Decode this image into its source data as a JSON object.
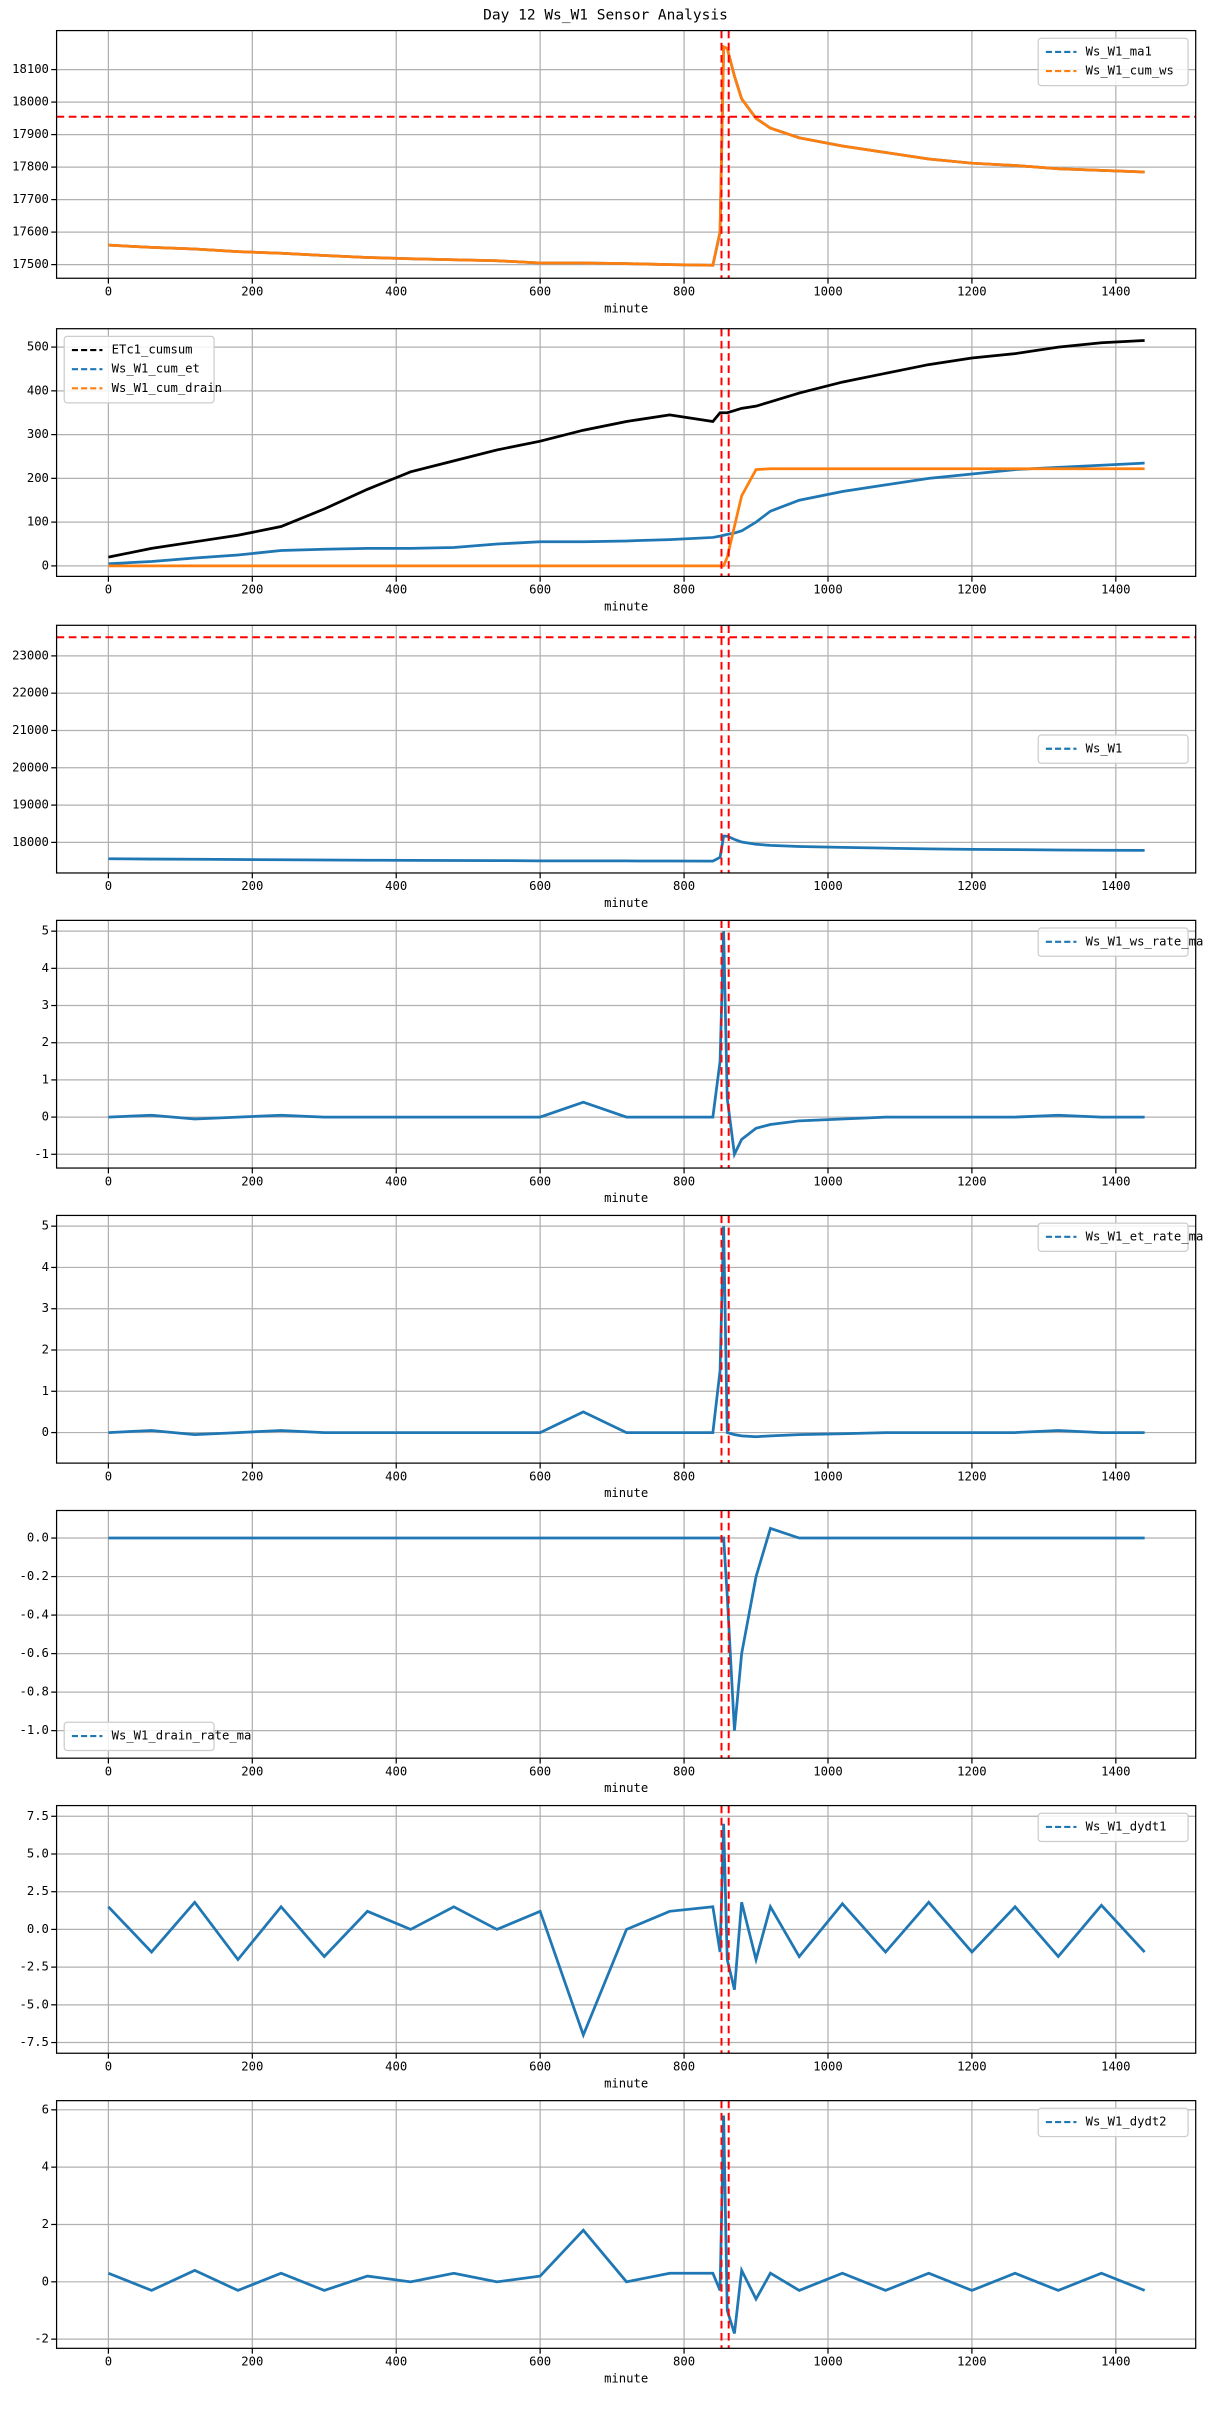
{
  "title": "Day 12 Ws_W1 Sensor Analysis",
  "chart_data": [
    {
      "type": "line",
      "xlabel": "minute",
      "legend": "upper right",
      "grid": true,
      "x": [
        0,
        60,
        120,
        180,
        240,
        300,
        360,
        420,
        480,
        540,
        600,
        660,
        720,
        780,
        840,
        850,
        855,
        860,
        870,
        880,
        900,
        920,
        960,
        1020,
        1080,
        1140,
        1200,
        1260,
        1320,
        1380,
        1440
      ],
      "xlim": [
        -72,
        1511
      ],
      "xticks": [
        0,
        200,
        400,
        600,
        800,
        1000,
        1200,
        1400
      ],
      "ylim": [
        17458,
        18220
      ],
      "yticks": [
        17500,
        17600,
        17700,
        17800,
        17900,
        18000,
        18100
      ],
      "hlines": [
        17955
      ],
      "vlines": [
        852,
        862
      ],
      "series": [
        {
          "name": "Ws_W1_ma1",
          "color": "#1f77b4",
          "values": [
            17560,
            17553,
            17548,
            17540,
            17535,
            17528,
            17522,
            17518,
            17515,
            17512,
            17505,
            17505,
            17503,
            17500,
            17498,
            17600,
            18170,
            18165,
            18080,
            18010,
            17950,
            17920,
            17890,
            17865,
            17845,
            17825,
            17812,
            17805,
            17795,
            17790,
            17785
          ]
        },
        {
          "name": "Ws_W1_cum_ws",
          "color": "#ff7f0e",
          "values": [
            17560,
            17553,
            17548,
            17540,
            17535,
            17528,
            17522,
            17518,
            17515,
            17512,
            17505,
            17505,
            17503,
            17500,
            17498,
            17600,
            18170,
            18165,
            18080,
            18010,
            17950,
            17920,
            17890,
            17865,
            17845,
            17825,
            17812,
            17805,
            17795,
            17790,
            17785
          ]
        }
      ]
    },
    {
      "type": "line",
      "xlabel": "minute",
      "legend": "upper left",
      "grid": true,
      "x": [
        0,
        60,
        120,
        180,
        240,
        300,
        360,
        420,
        480,
        540,
        600,
        660,
        720,
        780,
        840,
        850,
        855,
        860,
        870,
        880,
        900,
        920,
        960,
        1020,
        1080,
        1140,
        1200,
        1260,
        1320,
        1380,
        1440
      ],
      "xlim": [
        -72,
        1511
      ],
      "xticks": [
        0,
        200,
        400,
        600,
        800,
        1000,
        1200,
        1400
      ],
      "ylim": [
        -24,
        542
      ],
      "yticks": [
        0,
        100,
        200,
        300,
        400,
        500
      ],
      "vlines": [
        852,
        862
      ],
      "series": [
        {
          "name": "ETc1_cumsum",
          "color": "#000000",
          "values": [
            20,
            40,
            55,
            70,
            90,
            130,
            175,
            215,
            240,
            265,
            285,
            310,
            330,
            345,
            330,
            350,
            350,
            350,
            355,
            360,
            365,
            375,
            395,
            420,
            440,
            460,
            475,
            485,
            500,
            510,
            515
          ]
        },
        {
          "name": "Ws_W1_cum_et",
          "color": "#1f77b4",
          "values": [
            5,
            10,
            18,
            25,
            35,
            38,
            40,
            40,
            42,
            50,
            55,
            55,
            57,
            60,
            65,
            68,
            70,
            72,
            75,
            80,
            100,
            125,
            150,
            170,
            185,
            200,
            210,
            220,
            225,
            230,
            235
          ]
        },
        {
          "name": "Ws_W1_cum_drain",
          "color": "#ff7f0e",
          "values": [
            0,
            0,
            0,
            0,
            0,
            0,
            0,
            0,
            0,
            0,
            0,
            0,
            0,
            0,
            0,
            0,
            0,
            20,
            90,
            160,
            220,
            222,
            222,
            222,
            222,
            222,
            222,
            222,
            222,
            222,
            222
          ]
        }
      ]
    },
    {
      "type": "line",
      "xlabel": "minute",
      "legend": "center right",
      "grid": true,
      "x": [
        0,
        60,
        120,
        180,
        240,
        300,
        360,
        420,
        480,
        540,
        600,
        660,
        720,
        780,
        840,
        850,
        855,
        860,
        870,
        880,
        900,
        920,
        960,
        1020,
        1080,
        1140,
        1200,
        1260,
        1320,
        1380,
        1440
      ],
      "xlim": [
        -72,
        1511
      ],
      "xticks": [
        0,
        200,
        400,
        600,
        800,
        1000,
        1200,
        1400
      ],
      "ylim": [
        17180,
        23820
      ],
      "yticks": [
        18000,
        19000,
        20000,
        21000,
        22000,
        23000
      ],
      "hlines": [
        23500
      ],
      "vlines": [
        852,
        862
      ],
      "series": [
        {
          "name": "Ws_W1",
          "color": "#1f77b4",
          "values": [
            17560,
            17553,
            17548,
            17540,
            17535,
            17528,
            17522,
            17518,
            17515,
            17512,
            17505,
            17505,
            17503,
            17500,
            17498,
            17600,
            18170,
            18165,
            18080,
            18010,
            17950,
            17920,
            17890,
            17865,
            17845,
            17825,
            17812,
            17805,
            17795,
            17790,
            17785
          ]
        }
      ]
    },
    {
      "type": "line",
      "xlabel": "minute",
      "legend": "upper right",
      "grid": true,
      "x": [
        0,
        60,
        120,
        180,
        240,
        300,
        360,
        420,
        480,
        540,
        600,
        660,
        720,
        780,
        840,
        850,
        855,
        860,
        870,
        880,
        900,
        920,
        960,
        1020,
        1080,
        1140,
        1200,
        1260,
        1320,
        1380,
        1440
      ],
      "xlim": [
        -72,
        1511
      ],
      "xticks": [
        0,
        200,
        400,
        600,
        800,
        1000,
        1200,
        1400
      ],
      "ylim": [
        -1.37,
        5.29
      ],
      "yticks": [
        -1,
        0,
        1,
        2,
        3,
        4,
        5
      ],
      "vlines": [
        852,
        862
      ],
      "series": [
        {
          "name": "Ws_W1_ws_rate_ma",
          "color": "#1f77b4",
          "values": [
            0,
            0.05,
            -0.05,
            0,
            0.05,
            0,
            0,
            0,
            0,
            0,
            0,
            0.4,
            0,
            0,
            0,
            1.5,
            5,
            0.5,
            -1,
            -0.6,
            -0.3,
            -0.2,
            -0.1,
            -0.05,
            0,
            0,
            0,
            0,
            0.05,
            0,
            0
          ]
        }
      ]
    },
    {
      "type": "line",
      "xlabel": "minute",
      "legend": "upper right",
      "grid": true,
      "x": [
        0,
        60,
        120,
        180,
        240,
        300,
        360,
        420,
        480,
        540,
        600,
        660,
        720,
        780,
        840,
        850,
        855,
        860,
        870,
        880,
        900,
        920,
        960,
        1020,
        1080,
        1140,
        1200,
        1260,
        1320,
        1380,
        1440
      ],
      "xlim": [
        -72,
        1511
      ],
      "xticks": [
        0,
        200,
        400,
        600,
        800,
        1000,
        1200,
        1400
      ],
      "ylim": [
        -0.74,
        5.26
      ],
      "yticks": [
        0,
        1,
        2,
        3,
        4,
        5
      ],
      "vlines": [
        852,
        862
      ],
      "series": [
        {
          "name": "Ws_W1_et_rate_ma",
          "color": "#1f77b4",
          "values": [
            0,
            0.05,
            -0.05,
            0,
            0.05,
            0,
            0,
            0,
            0,
            0,
            0,
            0.5,
            0,
            0,
            0,
            1.5,
            5,
            0,
            -0.05,
            -0.08,
            -0.1,
            -0.08,
            -0.05,
            -0.03,
            0,
            0,
            0,
            0,
            0.05,
            0,
            0
          ]
        }
      ]
    },
    {
      "type": "line",
      "xlabel": "minute",
      "legend": "lower left",
      "grid": true,
      "x": [
        0,
        60,
        120,
        180,
        240,
        300,
        360,
        420,
        480,
        540,
        600,
        660,
        720,
        780,
        840,
        850,
        855,
        860,
        870,
        880,
        900,
        920,
        960,
        1020,
        1080,
        1140,
        1200,
        1260,
        1320,
        1380,
        1440
      ],
      "xlim": [
        -72,
        1511
      ],
      "xticks": [
        0,
        200,
        400,
        600,
        800,
        1000,
        1200,
        1400
      ],
      "ylim": [
        -1.143,
        0.143
      ],
      "yticks": [
        {
          "value": 0,
          "label": "0.0"
        },
        -0.2,
        -0.4,
        -0.6,
        -0.8,
        {
          "value": -1,
          "label": "-1.0"
        }
      ],
      "vlines": [
        852,
        862
      ],
      "series": [
        {
          "name": "Ws_W1_drain_rate_ma",
          "color": "#1f77b4",
          "values": [
            0,
            0,
            0,
            0,
            0,
            0,
            0,
            0,
            0,
            0,
            0,
            0,
            0,
            0,
            0,
            0,
            0,
            -0.3,
            -1,
            -0.6,
            -0.2,
            0.05,
            0,
            0,
            0,
            0,
            0,
            0,
            0,
            0,
            0
          ]
        }
      ]
    },
    {
      "type": "line",
      "xlabel": "minute",
      "legend": "upper right",
      "grid": true,
      "x": [
        0,
        60,
        120,
        180,
        240,
        300,
        360,
        420,
        480,
        540,
        600,
        660,
        720,
        780,
        840,
        850,
        855,
        860,
        870,
        880,
        900,
        920,
        960,
        1020,
        1080,
        1140,
        1200,
        1260,
        1320,
        1380,
        1440
      ],
      "xlim": [
        -72,
        1511
      ],
      "xticks": [
        0,
        200,
        400,
        600,
        800,
        1000,
        1200,
        1400
      ],
      "ylim": [
        -8.21,
        8.21
      ],
      "yticks": [
        -7.5,
        {
          "value": -5,
          "label": "-5.0"
        },
        -2.5,
        {
          "value": 0,
          "label": "0.0"
        },
        2.5,
        {
          "value": 5,
          "label": "5.0"
        },
        7.5
      ],
      "vlines": [
        852,
        862
      ],
      "series": [
        {
          "name": "Ws_W1_dydt1",
          "color": "#1f77b4",
          "values": [
            1.5,
            -1.5,
            1.8,
            -2,
            1.5,
            -1.8,
            1.2,
            0,
            1.5,
            0,
            1.2,
            -7,
            0,
            1.2,
            1.5,
            -1.5,
            7,
            -2,
            -4,
            1.8,
            -2,
            1.5,
            -1.8,
            1.7,
            -1.5,
            1.8,
            -1.5,
            1.5,
            -1.8,
            1.6,
            -1.5
          ]
        }
      ]
    },
    {
      "type": "line",
      "xlabel": "minute",
      "legend": "upper right",
      "grid": true,
      "x": [
        0,
        60,
        120,
        180,
        240,
        300,
        360,
        420,
        480,
        540,
        600,
        660,
        720,
        780,
        840,
        850,
        855,
        860,
        870,
        880,
        900,
        920,
        960,
        1020,
        1080,
        1140,
        1200,
        1260,
        1320,
        1380,
        1440
      ],
      "xlim": [
        -72,
        1511
      ],
      "xticks": [
        0,
        200,
        400,
        600,
        800,
        1000,
        1200,
        1400
      ],
      "ylim": [
        -2.32,
        6.32
      ],
      "yticks": [
        -2,
        0,
        2,
        4,
        6
      ],
      "vlines": [
        852,
        862
      ],
      "series": [
        {
          "name": "Ws_W1_dydt2",
          "color": "#1f77b4",
          "values": [
            0.3,
            -0.3,
            0.4,
            -0.3,
            0.3,
            -0.3,
            0.2,
            0,
            0.3,
            0,
            0.2,
            1.8,
            0,
            0.3,
            0.3,
            -0.3,
            5.8,
            -1,
            -1.8,
            0.4,
            -0.6,
            0.3,
            -0.3,
            0.3,
            -0.3,
            0.3,
            -0.3,
            0.3,
            -0.3,
            0.3,
            -0.3
          ]
        }
      ]
    }
  ]
}
